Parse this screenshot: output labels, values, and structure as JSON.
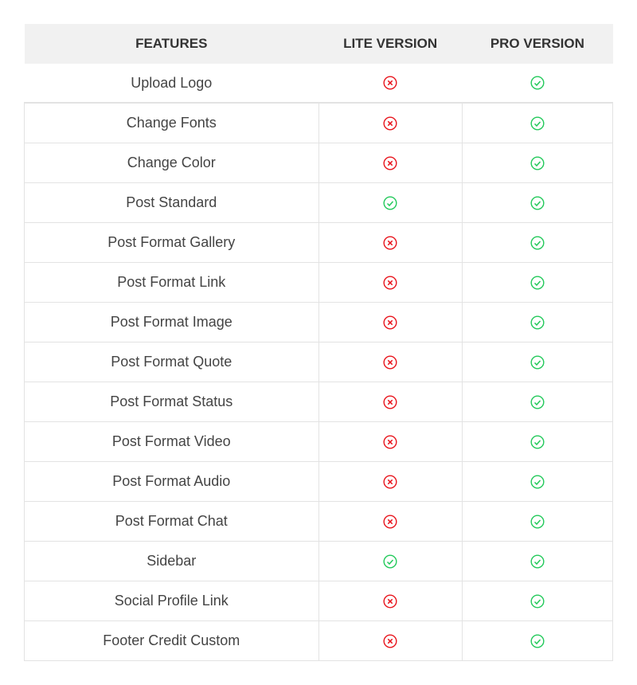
{
  "headers": [
    "FEATURES",
    "LITE VERSION",
    "PRO VERSION"
  ],
  "colors": {
    "yes": "#22c95a",
    "no": "#e8141c"
  },
  "rows": [
    {
      "feature": "Upload Logo",
      "lite": false,
      "pro": true
    },
    {
      "feature": "Change Fonts",
      "lite": false,
      "pro": true
    },
    {
      "feature": "Change Color",
      "lite": false,
      "pro": true
    },
    {
      "feature": "Post Standard",
      "lite": true,
      "pro": true
    },
    {
      "feature": "Post Format Gallery",
      "lite": false,
      "pro": true
    },
    {
      "feature": "Post Format Link",
      "lite": false,
      "pro": true
    },
    {
      "feature": "Post Format Image",
      "lite": false,
      "pro": true
    },
    {
      "feature": "Post Format Quote",
      "lite": false,
      "pro": true
    },
    {
      "feature": "Post Format Status",
      "lite": false,
      "pro": true
    },
    {
      "feature": "Post Format Video",
      "lite": false,
      "pro": true
    },
    {
      "feature": "Post Format Audio",
      "lite": false,
      "pro": true
    },
    {
      "feature": "Post Format Chat",
      "lite": false,
      "pro": true
    },
    {
      "feature": "Sidebar",
      "lite": true,
      "pro": true
    },
    {
      "feature": "Social Profile Link",
      "lite": false,
      "pro": true
    },
    {
      "feature": "Footer Credit Custom",
      "lite": false,
      "pro": true
    }
  ]
}
